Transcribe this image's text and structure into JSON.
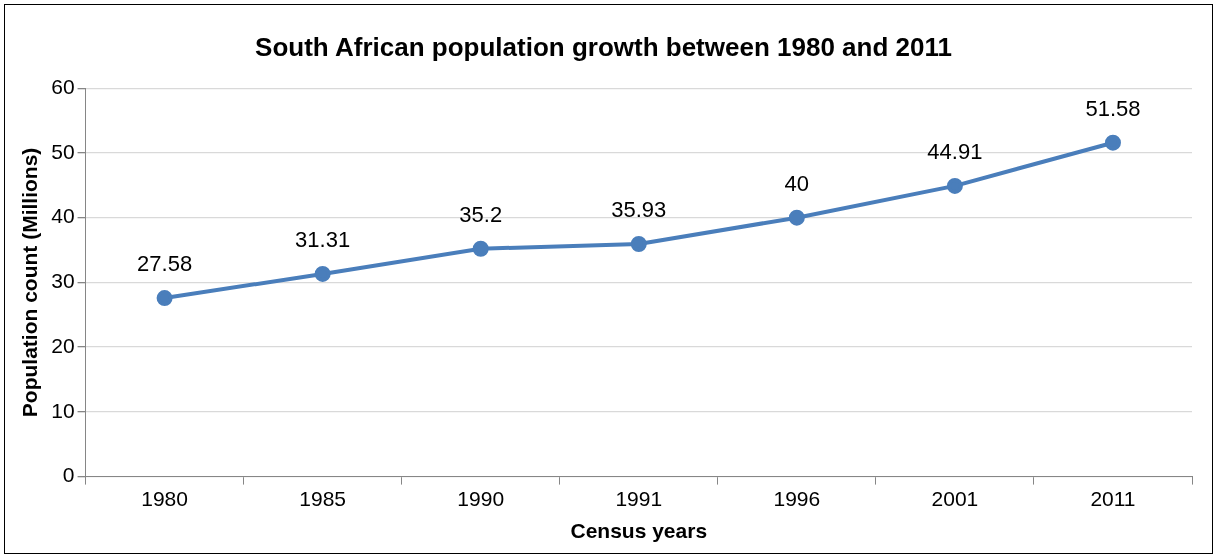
{
  "chart_data": {
    "type": "line",
    "title": "South African population growth between 1980 and 2011",
    "xlabel": "Census years",
    "ylabel": "Population count (Millions)",
    "categories": [
      "1980",
      "1985",
      "1990",
      "1991",
      "1996",
      "2001",
      "2011"
    ],
    "values": [
      27.58,
      31.31,
      35.2,
      35.93,
      40,
      44.91,
      51.58
    ],
    "color": "#4a7ebb",
    "ylim": [
      0,
      60
    ],
    "yticks": [
      0,
      10,
      20,
      30,
      40,
      50,
      60
    ],
    "grid": "y",
    "legend": false,
    "marker": "circle",
    "line_style": "solid",
    "data_labels": true
  }
}
